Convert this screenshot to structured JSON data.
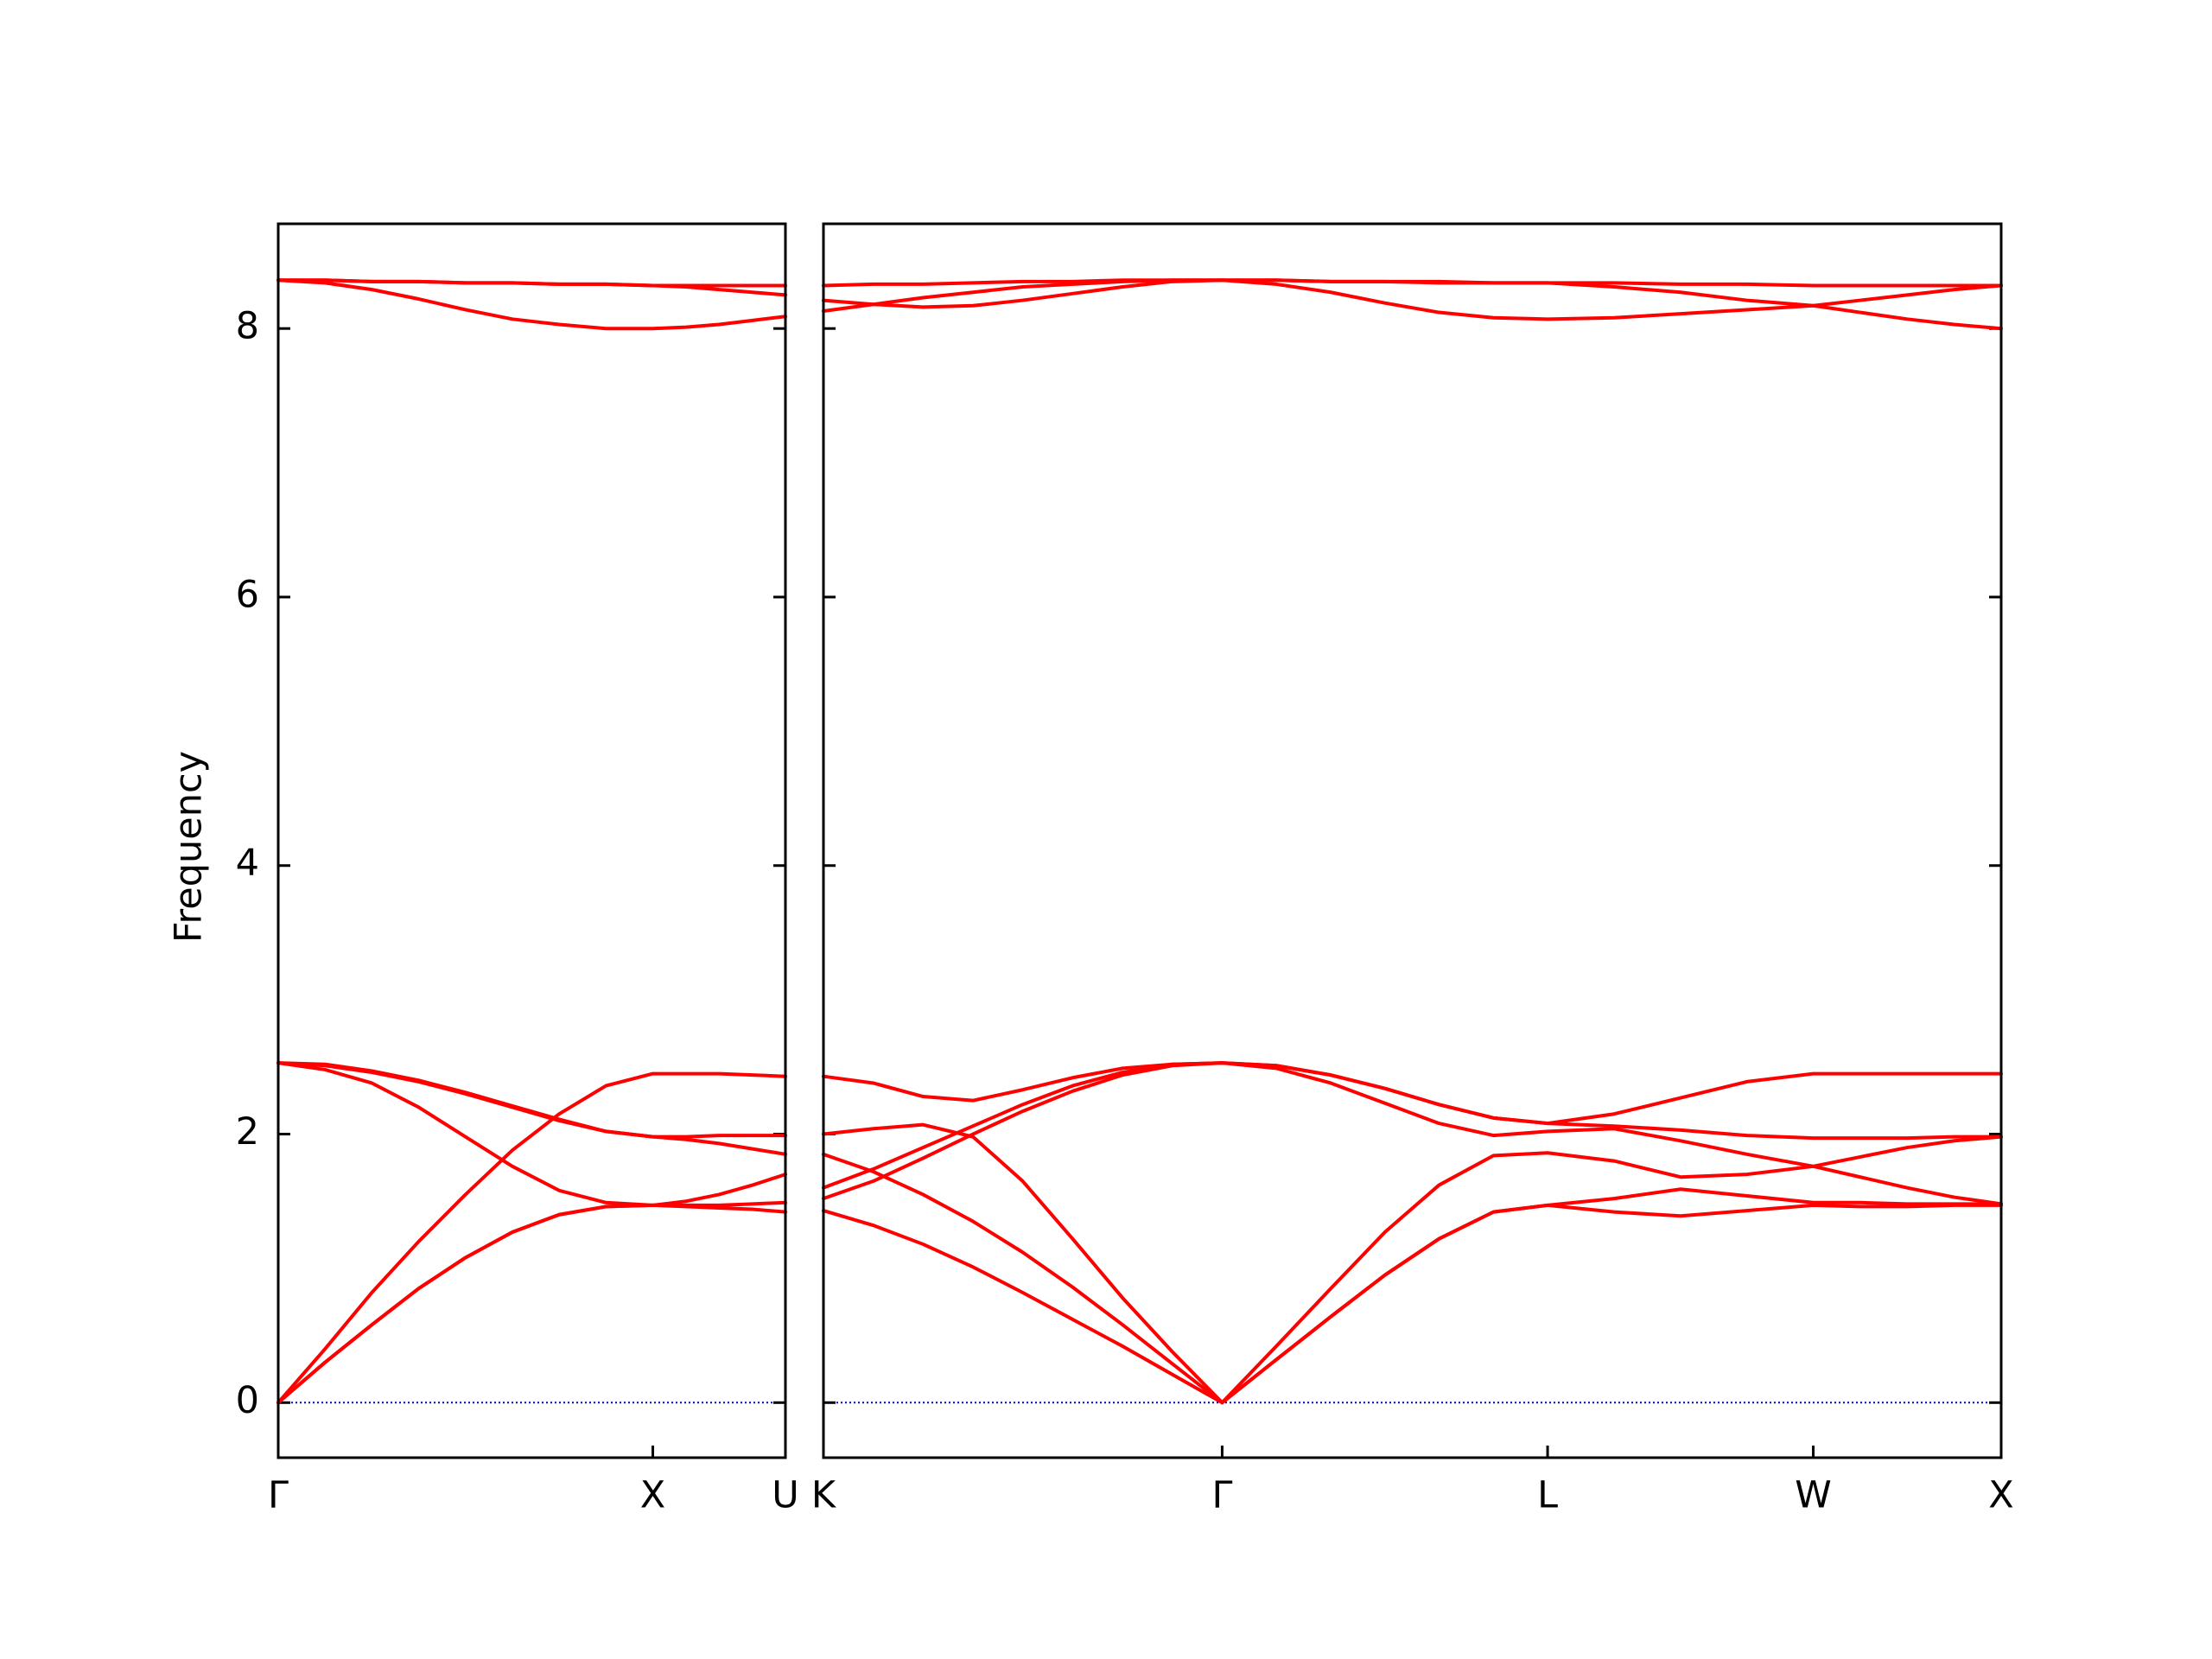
{
  "chart_data": [
    {
      "type": "line",
      "ylabel": "Frequency",
      "ylim": [
        -0.41,
        8.78
      ],
      "yticks": [
        0,
        2,
        4,
        6,
        8
      ],
      "xlim": [
        0,
        1.354
      ],
      "xticks": [
        {
          "value": 0,
          "label": "Γ"
        },
        {
          "value": 1.0,
          "label": "X"
        },
        {
          "value": 1.354,
          "label": "U"
        }
      ],
      "hline": 0,
      "hline_color": "#0000cc",
      "x": [
        0,
        0.125,
        0.25,
        0.375,
        0.5,
        0.625,
        0.75,
        0.875,
        1.0,
        1.089,
        1.177,
        1.266,
        1.354
      ],
      "series": [
        {
          "color": "#ff0000",
          "values": [
            0,
            0.3,
            0.58,
            0.85,
            1.08,
            1.27,
            1.4,
            1.46,
            1.47,
            1.47,
            1.47,
            1.48,
            1.49
          ]
        },
        {
          "color": "#ff0000",
          "values": [
            0,
            0.3,
            0.58,
            0.85,
            1.08,
            1.27,
            1.4,
            1.46,
            1.47,
            1.46,
            1.45,
            1.44,
            1.42
          ]
        },
        {
          "color": "#ff0000",
          "values": [
            0,
            0.4,
            0.82,
            1.2,
            1.55,
            1.88,
            2.15,
            2.36,
            2.45,
            2.45,
            2.45,
            2.44,
            2.43
          ]
        },
        {
          "color": "#ff0000",
          "values": [
            2.53,
            2.48,
            2.38,
            2.2,
            1.98,
            1.76,
            1.58,
            1.49,
            1.47,
            1.5,
            1.55,
            1.62,
            1.7
          ]
        },
        {
          "color": "#ff0000",
          "values": [
            2.53,
            2.51,
            2.46,
            2.39,
            2.3,
            2.2,
            2.1,
            2.02,
            1.98,
            1.96,
            1.93,
            1.89,
            1.85
          ]
        },
        {
          "color": "#ff0000",
          "values": [
            2.53,
            2.52,
            2.47,
            2.4,
            2.31,
            2.21,
            2.11,
            2.02,
            1.98,
            1.98,
            1.99,
            1.99,
            1.99
          ]
        },
        {
          "color": "#ff0000",
          "values": [
            8.36,
            8.36,
            8.35,
            8.35,
            8.34,
            8.34,
            8.33,
            8.33,
            8.32,
            8.32,
            8.32,
            8.32,
            8.32
          ]
        },
        {
          "color": "#ff0000",
          "values": [
            8.36,
            8.36,
            8.35,
            8.35,
            8.34,
            8.34,
            8.33,
            8.33,
            8.32,
            8.31,
            8.29,
            8.27,
            8.25
          ]
        },
        {
          "color": "#ff0000",
          "values": [
            8.36,
            8.34,
            8.29,
            8.22,
            8.14,
            8.07,
            8.03,
            8.0,
            8.0,
            8.01,
            8.03,
            8.06,
            8.09
          ]
        }
      ]
    },
    {
      "type": "line",
      "ylim": [
        -0.41,
        8.78
      ],
      "xlim": [
        1.354,
        4.488
      ],
      "xticks": [
        {
          "value": 1.354,
          "label": "K"
        },
        {
          "value": 2.415,
          "label": "Γ"
        },
        {
          "value": 3.281,
          "label": "L"
        },
        {
          "value": 3.988,
          "label": "W"
        },
        {
          "value": 4.488,
          "label": "X"
        }
      ],
      "hline": 0,
      "hline_color": "#0000cc",
      "x": [
        1.354,
        1.487,
        1.619,
        1.752,
        1.884,
        2.017,
        2.15,
        2.282,
        2.415,
        2.559,
        2.704,
        2.848,
        2.992,
        3.137,
        3.281,
        3.458,
        3.635,
        3.811,
        3.988,
        4.113,
        4.238,
        4.363,
        4.488
      ],
      "series": [
        {
          "color": "#ff0000",
          "values": [
            2.0,
            2.04,
            2.07,
            1.98,
            1.65,
            1.22,
            0.78,
            0.38,
            0,
            0.42,
            0.85,
            1.27,
            1.62,
            1.84,
            1.86,
            1.8,
            1.68,
            1.7,
            1.76,
            1.83,
            1.9,
            1.95,
            1.98
          ]
        },
        {
          "color": "#ff0000",
          "values": [
            1.85,
            1.72,
            1.55,
            1.35,
            1.12,
            0.86,
            0.58,
            0.29,
            0,
            0.32,
            0.64,
            0.95,
            1.22,
            1.42,
            1.47,
            1.52,
            1.59,
            1.54,
            1.49,
            1.49,
            1.48,
            1.48,
            1.48
          ]
        },
        {
          "color": "#ff0000",
          "values": [
            1.43,
            1.32,
            1.18,
            1.01,
            0.82,
            0.62,
            0.42,
            0.21,
            0,
            0.32,
            0.64,
            0.95,
            1.22,
            1.42,
            1.47,
            1.42,
            1.39,
            1.43,
            1.47,
            1.46,
            1.46,
            1.47,
            1.47
          ]
        },
        {
          "color": "#ff0000",
          "values": [
            2.43,
            2.38,
            2.28,
            2.25,
            2.33,
            2.42,
            2.49,
            2.52,
            2.53,
            2.51,
            2.44,
            2.34,
            2.22,
            2.12,
            2.08,
            2.15,
            2.27,
            2.39,
            2.45,
            2.45,
            2.45,
            2.45,
            2.45
          ]
        },
        {
          "color": "#ff0000",
          "values": [
            1.52,
            1.65,
            1.82,
            2.0,
            2.17,
            2.32,
            2.44,
            2.51,
            2.53,
            2.51,
            2.44,
            2.34,
            2.22,
            2.12,
            2.08,
            2.06,
            2.03,
            1.99,
            1.97,
            1.97,
            1.97,
            1.98,
            1.98
          ]
        },
        {
          "color": "#ff0000",
          "values": [
            1.6,
            1.74,
            1.9,
            2.06,
            2.22,
            2.36,
            2.46,
            2.52,
            2.53,
            2.49,
            2.38,
            2.23,
            2.08,
            1.99,
            2.02,
            2.04,
            1.95,
            1.85,
            1.76,
            1.68,
            1.6,
            1.53,
            1.48
          ]
        },
        {
          "color": "#ff0000",
          "values": [
            8.32,
            8.33,
            8.33,
            8.34,
            8.35,
            8.35,
            8.36,
            8.36,
            8.36,
            8.36,
            8.35,
            8.35,
            8.35,
            8.34,
            8.34,
            8.34,
            8.33,
            8.33,
            8.32,
            8.32,
            8.32,
            8.32,
            8.32
          ]
        },
        {
          "color": "#ff0000",
          "values": [
            8.21,
            8.18,
            8.16,
            8.17,
            8.21,
            8.26,
            8.31,
            8.35,
            8.36,
            8.36,
            8.35,
            8.35,
            8.34,
            8.34,
            8.34,
            8.31,
            8.27,
            8.21,
            8.17,
            8.12,
            8.07,
            8.03,
            8.0
          ]
        },
        {
          "color": "#ff0000",
          "values": [
            8.13,
            8.18,
            8.23,
            8.27,
            8.31,
            8.33,
            8.35,
            8.36,
            8.36,
            8.33,
            8.27,
            8.19,
            8.12,
            8.08,
            8.07,
            8.08,
            8.11,
            8.14,
            8.17,
            8.21,
            8.25,
            8.29,
            8.32
          ]
        }
      ]
    }
  ]
}
